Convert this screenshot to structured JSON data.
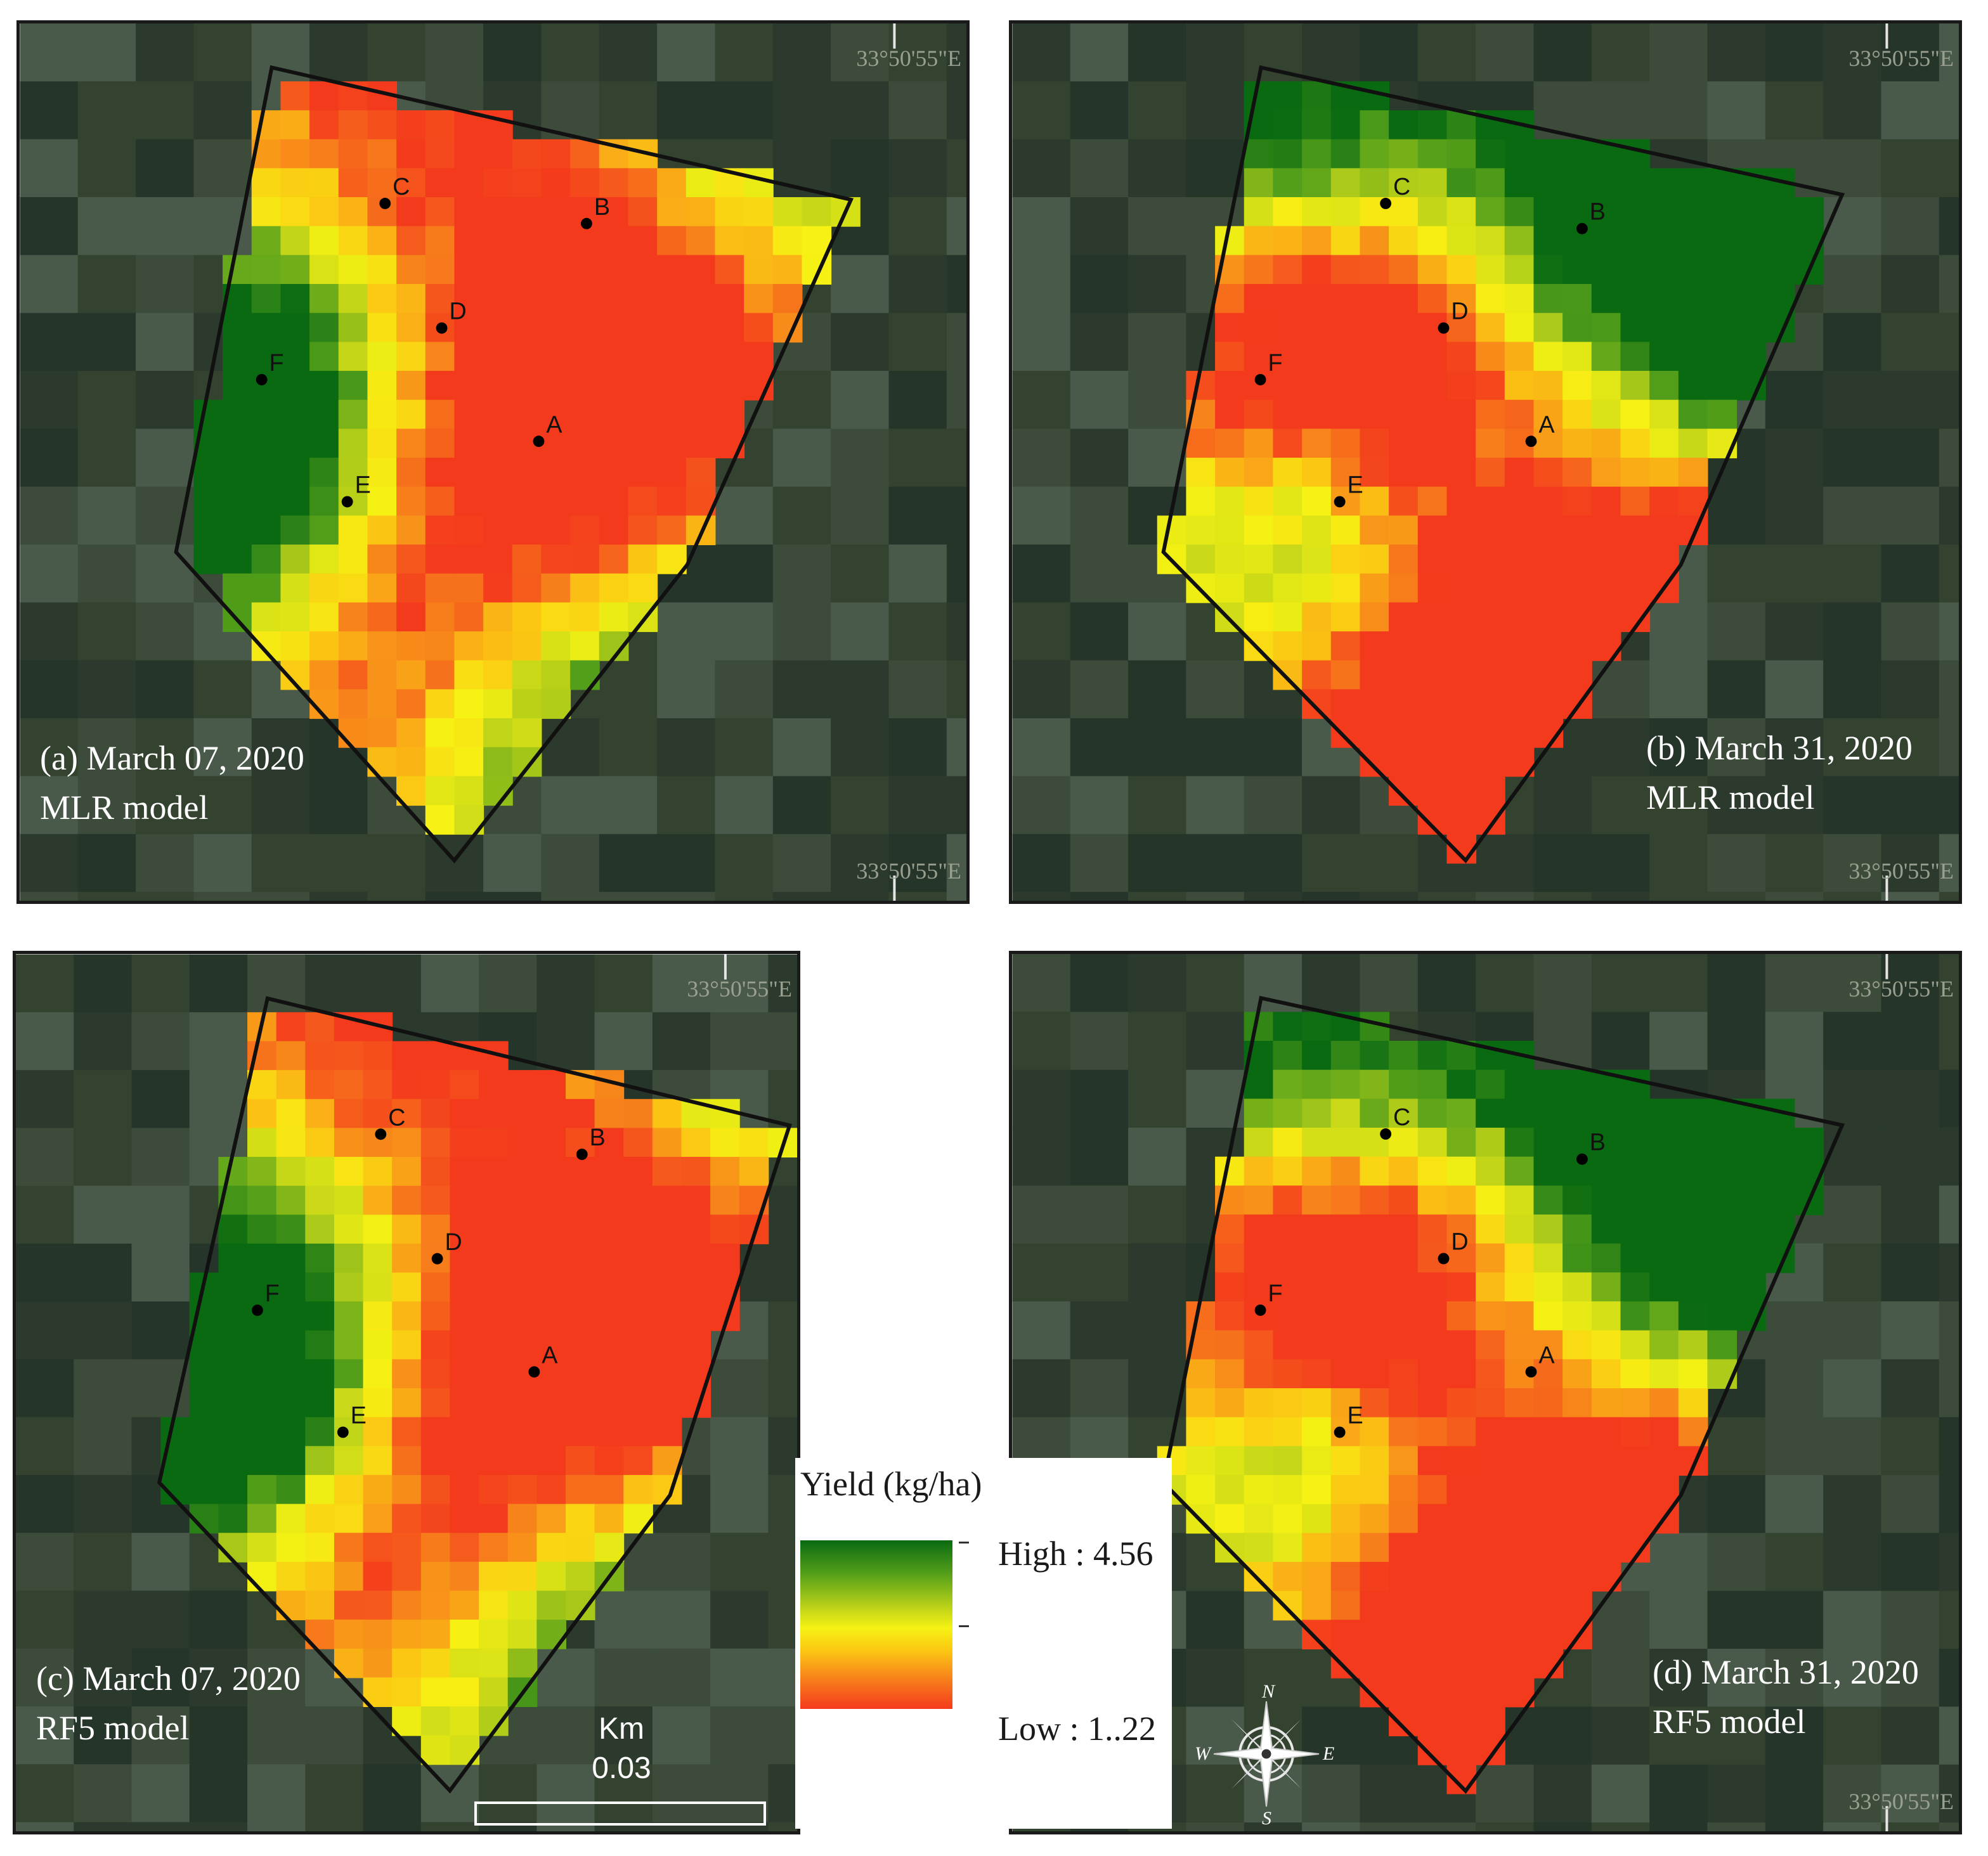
{
  "coordinate_label": "33°50'55\"E",
  "panels": [
    {
      "id": "a",
      "caption_line1": "(a) March 07, 2020",
      "caption_line2": "MLR model",
      "show_bottom_coord": true
    },
    {
      "id": "b",
      "caption_line1": "(b) March 31, 2020",
      "caption_line2": "MLR model",
      "show_bottom_coord": true
    },
    {
      "id": "c",
      "caption_line1": "(c) March 07, 2020",
      "caption_line2": "RF5 model",
      "show_bottom_coord": false
    },
    {
      "id": "d",
      "caption_line1": "(d) March 31, 2020",
      "caption_line2": "RF5 model",
      "show_bottom_coord": true
    }
  ],
  "point_labels": [
    "A",
    "B",
    "C",
    "D",
    "E",
    "F"
  ],
  "legend": {
    "title": "Yield (kg/ha)",
    "high_label": "High : 4.56",
    "low_label": "Low : 1..22",
    "colors": [
      "#0a6a12",
      "#55a01a",
      "#c8d818",
      "#f6f213",
      "#fbc513",
      "#f7811b",
      "#f43a1c"
    ]
  },
  "scalebar": {
    "unit": "Km",
    "value": "0.03"
  },
  "compass": {
    "n": "N",
    "s": "S",
    "e": "E",
    "w": "W",
    "icon": "compass-rose-icon"
  },
  "background_colors": [
    "#2b3a2c",
    "#34432f",
    "#3d4c3a",
    "#26352a",
    "#4a5a4a"
  ],
  "boundary_color": "#111111"
}
